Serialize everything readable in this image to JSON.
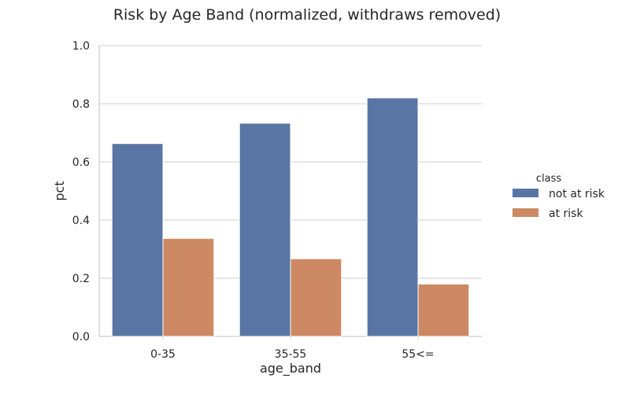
{
  "chart_data": {
    "type": "bar",
    "title": "Risk by Age Band (normalized, withdraws removed)",
    "xlabel": "age_band",
    "ylabel": "pct",
    "ylim": [
      0,
      1
    ],
    "yticks": [
      "0.0",
      "0.2",
      "0.4",
      "0.6",
      "0.8",
      "1.0"
    ],
    "categories": [
      "0-35",
      "35-55",
      "55<="
    ],
    "series": [
      {
        "name": "not at risk",
        "values": [
          0.663,
          0.733,
          0.82
        ],
        "color": "#5975a4"
      },
      {
        "name": "at risk",
        "values": [
          0.337,
          0.267,
          0.18
        ],
        "color": "#cc8963"
      }
    ],
    "legend": {
      "title": "class",
      "placement": "right"
    },
    "grid": true
  }
}
